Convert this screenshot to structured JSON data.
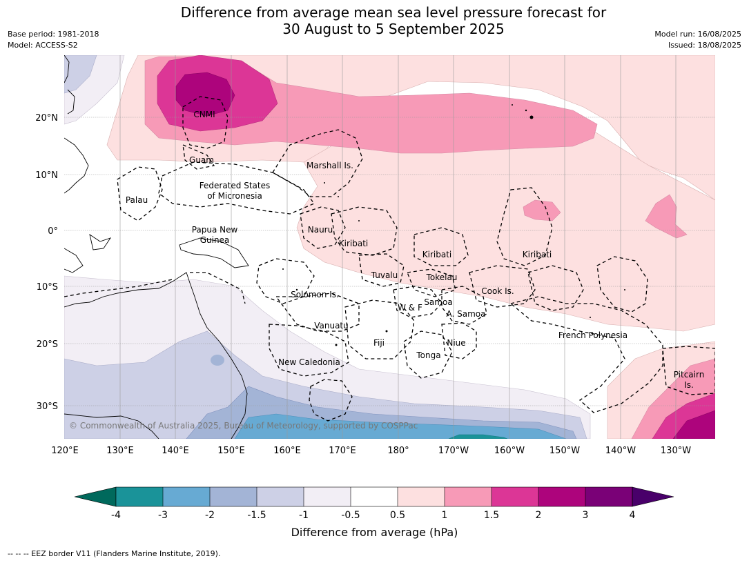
{
  "title_line1": "Difference from average mean sea level pressure forecast for",
  "title_line2": "30 August to 5 September 2025",
  "meta_left": {
    "base_period": "Base period: 1981-2018",
    "model": "Model: ACCESS-S2"
  },
  "meta_right": {
    "model_run": "Model run: 16/08/2025",
    "issued": "Issued: 18/08/2025"
  },
  "lon_ticks": [
    "120°E",
    "130°E",
    "140°E",
    "150°E",
    "160°E",
    "170°E",
    "180°",
    "170°W",
    "160°W",
    "150°W",
    "140°W",
    "130°W"
  ],
  "lat_ticks": [
    "20°N",
    "10°N",
    "0°",
    "10°S",
    "20°S",
    "30°S"
  ],
  "regions": {
    "cnmi": "CNMI",
    "guam": "Guam",
    "marshall": "Marshall Is.",
    "fsm1": "Federated States",
    "fsm2": "of Micronesia",
    "palau": "Palau",
    "png1": "Papua New",
    "png2": "Guinea",
    "nauru": "Nauru",
    "kiribati_w": "Kiribati",
    "kiribati_c": "Kiribati",
    "kiribati_e": "Kiribati",
    "tuvalu": "Tuvalu",
    "tokelau": "Tokelau",
    "cook": "Cook Is.",
    "solomon": "Solomon Is.",
    "samoa": "Samoa",
    "wf": "W & F",
    "asamoa": "A. Samoa",
    "vanuatu": "Vanuatu",
    "fiji": "Fiji",
    "niue": "Niue",
    "tonga": "Tonga",
    "newcal": "New Caledonia",
    "frpoly": "French Polynesia",
    "pitcairn1": "Pitcairn",
    "pitcairn2": "Is."
  },
  "copyright": "© Commonwealth of Australia 2025, Bureau of Meteorology, supported by COSPPac",
  "colorbar": {
    "ticks": [
      "-4",
      "-3",
      "-2",
      "-1.5",
      "-1",
      "-0.5",
      "0.5",
      "1",
      "1.5",
      "2",
      "3",
      "4"
    ],
    "colors": {
      "below_min": "#00695c",
      "n4_n3": "#1a9399",
      "n3_n2": "#67aad3",
      "n2_n15": "#a3b4d6",
      "n15_n1": "#cdd0e6",
      "n1_n05": "#f2eef5",
      "n05_05": "#ffffff",
      "p05_1": "#fde0e0",
      "p1_15": "#f79ab7",
      "p15_2": "#dc3696",
      "p2_3": "#ad047c",
      "p3_4": "#7a0177",
      "above_max": "#49006a"
    },
    "label": "Difference from average (hPa)"
  },
  "footnote": "-- -- -- EEZ border V11 (Flanders Marine Institute, 2019)."
}
